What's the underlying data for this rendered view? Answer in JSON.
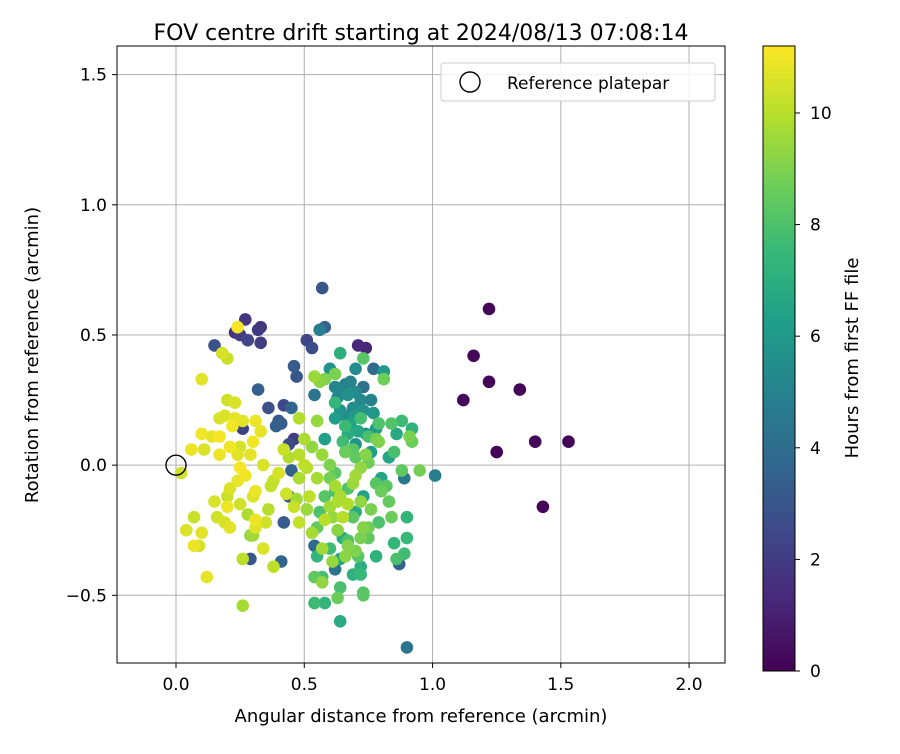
{
  "chart_data": {
    "type": "scatter",
    "title": "FOV centre drift starting at 2024/08/13 07:08:14",
    "xlabel": "Angular distance from reference (arcmin)",
    "ylabel": "Rotation from reference (arcmin)",
    "xlim": [
      -0.23,
      2.14
    ],
    "ylim": [
      -0.76,
      1.61
    ],
    "xticks": [
      0.0,
      0.5,
      1.0,
      1.5,
      2.0
    ],
    "xtick_labels": [
      "0.0",
      "0.5",
      "1.0",
      "1.5",
      "2.0"
    ],
    "yticks": [
      -0.5,
      0.0,
      0.5,
      1.0,
      1.5
    ],
    "ytick_labels": [
      "−0.5",
      "0.0",
      "0.5",
      "1.0",
      "1.5"
    ],
    "grid": true,
    "legend": {
      "placement": "top-right",
      "entries": [
        {
          "label": "Reference platepar",
          "marker": "open-circle",
          "color": "#000000"
        }
      ]
    },
    "reference_point": {
      "x": 0.0,
      "y": 0.0
    },
    "colorbar": {
      "label": "Hours from first FF file",
      "range": [
        0,
        11.2
      ],
      "ticks": [
        0,
        2,
        4,
        6,
        8,
        10
      ],
      "tick_labels": [
        "0",
        "2",
        "4",
        "6",
        "8",
        "10"
      ],
      "colormap": "viridis",
      "stops": [
        "#440154",
        "#482878",
        "#3e4989",
        "#31688e",
        "#26828e",
        "#1f9e89",
        "#35b779",
        "#6ece58",
        "#b5de2b",
        "#fde725"
      ]
    },
    "points": [
      {
        "x": 1.22,
        "y": 0.6,
        "t": 0.1
      },
      {
        "x": 1.16,
        "y": 0.42,
        "t": 0.2
      },
      {
        "x": 1.12,
        "y": 0.25,
        "t": 0.2
      },
      {
        "x": 1.22,
        "y": 0.32,
        "t": 0.1
      },
      {
        "x": 1.34,
        "y": 0.29,
        "t": 0.1
      },
      {
        "x": 1.25,
        "y": 0.05,
        "t": 0.1
      },
      {
        "x": 1.4,
        "y": 0.09,
        "t": 0.2
      },
      {
        "x": 1.53,
        "y": 0.09,
        "t": 0.1
      },
      {
        "x": 1.43,
        "y": -0.16,
        "t": 0.1
      },
      {
        "x": 0.74,
        "y": 0.45,
        "t": 1.2
      },
      {
        "x": 0.71,
        "y": 0.46,
        "t": 1.3
      },
      {
        "x": 0.27,
        "y": 0.56,
        "t": 1.8
      },
      {
        "x": 0.23,
        "y": 0.51,
        "t": 1.6
      },
      {
        "x": 0.25,
        "y": 0.5,
        "t": 2.0
      },
      {
        "x": 0.33,
        "y": 0.53,
        "t": 1.8
      },
      {
        "x": 0.32,
        "y": 0.52,
        "t": 1.9
      },
      {
        "x": 0.28,
        "y": 0.48,
        "t": 2.4
      },
      {
        "x": 0.33,
        "y": 0.47,
        "t": 2.0
      },
      {
        "x": 0.15,
        "y": 0.46,
        "t": 2.8
      },
      {
        "x": 0.51,
        "y": 0.48,
        "t": 2.3
      },
      {
        "x": 0.53,
        "y": 0.45,
        "t": 2.7
      },
      {
        "x": 0.57,
        "y": 0.68,
        "t": 3.0
      },
      {
        "x": 0.58,
        "y": 0.53,
        "t": 3.5
      },
      {
        "x": 0.46,
        "y": 0.38,
        "t": 3.2
      },
      {
        "x": 0.47,
        "y": 0.34,
        "t": 3.0
      },
      {
        "x": 0.32,
        "y": 0.29,
        "t": 3.4
      },
      {
        "x": 0.36,
        "y": 0.22,
        "t": 2.8
      },
      {
        "x": 0.42,
        "y": 0.23,
        "t": 2.5
      },
      {
        "x": 0.45,
        "y": 0.22,
        "t": 3.6
      },
      {
        "x": 0.4,
        "y": 0.17,
        "t": 3.0
      },
      {
        "x": 0.41,
        "y": 0.16,
        "t": 3.2
      },
      {
        "x": 0.39,
        "y": 0.15,
        "t": 3.4
      },
      {
        "x": 0.26,
        "y": 0.14,
        "t": 2.2
      },
      {
        "x": 0.46,
        "y": 0.1,
        "t": 2.0
      },
      {
        "x": 0.44,
        "y": 0.08,
        "t": 2.6
      },
      {
        "x": 0.45,
        "y": -0.02,
        "t": 3.5
      },
      {
        "x": 0.44,
        "y": -0.12,
        "t": 3.2
      },
      {
        "x": 0.42,
        "y": -0.22,
        "t": 3.3
      },
      {
        "x": 0.41,
        "y": -0.37,
        "t": 3.6
      },
      {
        "x": 0.29,
        "y": -0.36,
        "t": 3.1
      },
      {
        "x": 0.54,
        "y": -0.31,
        "t": 3.8
      },
      {
        "x": 0.77,
        "y": 0.37,
        "t": 3.9
      },
      {
        "x": 0.73,
        "y": 0.3,
        "t": 4.2
      },
      {
        "x": 0.87,
        "y": -0.38,
        "t": 3.5
      },
      {
        "x": 0.9,
        "y": -0.7,
        "t": 4.3
      },
      {
        "x": 1.01,
        "y": -0.04,
        "t": 4.8
      },
      {
        "x": 0.89,
        "y": -0.05,
        "t": 4.5
      },
      {
        "x": 0.62,
        "y": -0.4,
        "t": 4.3
      },
      {
        "x": 0.54,
        "y": 0.27,
        "t": 4.3
      },
      {
        "x": 0.56,
        "y": 0.52,
        "t": 4.7
      },
      {
        "x": 0.66,
        "y": 0.31,
        "t": 4.9
      },
      {
        "x": 0.68,
        "y": 0.32,
        "t": 5.0
      },
      {
        "x": 0.65,
        "y": 0.29,
        "t": 5.1
      },
      {
        "x": 0.63,
        "y": 0.26,
        "t": 5.2
      },
      {
        "x": 0.7,
        "y": 0.37,
        "t": 5.4
      },
      {
        "x": 0.69,
        "y": 0.22,
        "t": 5.4
      },
      {
        "x": 0.66,
        "y": 0.19,
        "t": 5.5
      },
      {
        "x": 0.72,
        "y": 0.25,
        "t": 5.3
      },
      {
        "x": 0.74,
        "y": 0.12,
        "t": 5.6
      },
      {
        "x": 0.7,
        "y": 0.08,
        "t": 5.8
      },
      {
        "x": 0.77,
        "y": 0.2,
        "t": 5.9
      },
      {
        "x": 0.81,
        "y": 0.36,
        "t": 6.0
      },
      {
        "x": 0.78,
        "y": 0.14,
        "t": 6.1
      },
      {
        "x": 0.6,
        "y": 0.37,
        "t": 5.7
      },
      {
        "x": 0.62,
        "y": 0.18,
        "t": 6.2
      },
      {
        "x": 0.58,
        "y": 0.1,
        "t": 6.3
      },
      {
        "x": 0.76,
        "y": 0.05,
        "t": 6.2
      },
      {
        "x": 0.8,
        "y": -0.05,
        "t": 6.4
      },
      {
        "x": 0.83,
        "y": 0.03,
        "t": 6.5
      },
      {
        "x": 0.86,
        "y": 0.12,
        "t": 6.7
      },
      {
        "x": 0.92,
        "y": 0.14,
        "t": 7.2
      },
      {
        "x": 0.73,
        "y": -0.12,
        "t": 6.4
      },
      {
        "x": 0.7,
        "y": -0.18,
        "t": 6.7
      },
      {
        "x": 0.65,
        "y": -0.28,
        "t": 6.9
      },
      {
        "x": 0.64,
        "y": -0.36,
        "t": 6.6
      },
      {
        "x": 0.72,
        "y": -0.39,
        "t": 7.0
      },
      {
        "x": 0.78,
        "y": -0.35,
        "t": 7.2
      },
      {
        "x": 0.69,
        "y": -0.42,
        "t": 7.1
      },
      {
        "x": 0.72,
        "y": -0.42,
        "t": 7.5
      },
      {
        "x": 0.6,
        "y": -0.32,
        "t": 7.7
      },
      {
        "x": 0.55,
        "y": -0.35,
        "t": 7.4
      },
      {
        "x": 0.57,
        "y": -0.43,
        "t": 7.8
      },
      {
        "x": 0.64,
        "y": -0.6,
        "t": 6.8
      },
      {
        "x": 0.58,
        "y": -0.53,
        "t": 7.3
      },
      {
        "x": 0.54,
        "y": -0.53,
        "t": 7.6
      },
      {
        "x": 0.64,
        "y": -0.47,
        "t": 7.9
      },
      {
        "x": 0.73,
        "y": -0.49,
        "t": 8.1
      },
      {
        "x": 0.73,
        "y": -0.5,
        "t": 8.3
      },
      {
        "x": 0.64,
        "y": 0.43,
        "t": 7.0
      },
      {
        "x": 0.62,
        "y": 0.24,
        "t": 7.4
      },
      {
        "x": 0.66,
        "y": 0.15,
        "t": 7.6
      },
      {
        "x": 0.72,
        "y": 0.18,
        "t": 7.8
      },
      {
        "x": 0.75,
        "y": 0.11,
        "t": 7.9
      },
      {
        "x": 0.79,
        "y": 0.16,
        "t": 8.0
      },
      {
        "x": 0.84,
        "y": 0.16,
        "t": 8.1
      },
      {
        "x": 0.88,
        "y": 0.17,
        "t": 7.6
      },
      {
        "x": 0.85,
        "y": 0.05,
        "t": 7.9
      },
      {
        "x": 0.88,
        "y": -0.02,
        "t": 8.4
      },
      {
        "x": 0.9,
        "y": -0.2,
        "t": 7.3
      },
      {
        "x": 0.9,
        "y": -0.28,
        "t": 7.5
      },
      {
        "x": 0.89,
        "y": -0.34,
        "t": 7.7
      },
      {
        "x": 0.86,
        "y": -0.36,
        "t": 7.9
      },
      {
        "x": 0.79,
        "y": -0.22,
        "t": 8.0
      },
      {
        "x": 0.78,
        "y": -0.07,
        "t": 8.2
      },
      {
        "x": 0.83,
        "y": -0.14,
        "t": 8.5
      },
      {
        "x": 0.92,
        "y": 0.09,
        "t": 8.6
      },
      {
        "x": 0.95,
        "y": -0.02,
        "t": 8.8
      },
      {
        "x": 0.91,
        "y": 0.11,
        "t": 8.9
      },
      {
        "x": 0.79,
        "y": 0.09,
        "t": 9.0
      },
      {
        "x": 0.75,
        "y": 0.01,
        "t": 8.7
      },
      {
        "x": 0.7,
        "y": 0.03,
        "t": 8.4
      },
      {
        "x": 0.66,
        "y": 0.05,
        "t": 8.6
      },
      {
        "x": 0.62,
        "y": -0.03,
        "t": 8.3
      },
      {
        "x": 0.6,
        "y": -0.05,
        "t": 8.8
      },
      {
        "x": 0.58,
        "y": -0.12,
        "t": 8.2
      },
      {
        "x": 0.56,
        "y": -0.18,
        "t": 8.0
      },
      {
        "x": 0.55,
        "y": -0.24,
        "t": 8.5
      },
      {
        "x": 0.62,
        "y": -0.1,
        "t": 7.9
      },
      {
        "x": 0.67,
        "y": -0.09,
        "t": 8.1
      },
      {
        "x": 0.69,
        "y": -0.2,
        "t": 8.3
      },
      {
        "x": 0.75,
        "y": -0.24,
        "t": 8.7
      },
      {
        "x": 0.72,
        "y": -0.28,
        "t": 8.9
      },
      {
        "x": 0.67,
        "y": -0.31,
        "t": 9.1
      },
      {
        "x": 0.63,
        "y": -0.25,
        "t": 9.2
      },
      {
        "x": 0.61,
        "y": -0.2,
        "t": 9.4
      },
      {
        "x": 0.6,
        "y": -0.16,
        "t": 9.6
      },
      {
        "x": 0.63,
        "y": -0.14,
        "t": 9.8
      },
      {
        "x": 0.58,
        "y": -0.21,
        "t": 10.0
      },
      {
        "x": 0.54,
        "y": -0.43,
        "t": 8.4
      },
      {
        "x": 0.63,
        "y": -0.51,
        "t": 8.6
      },
      {
        "x": 0.57,
        "y": -0.45,
        "t": 9.3
      },
      {
        "x": 0.73,
        "y": 0.41,
        "t": 8.2
      },
      {
        "x": 0.81,
        "y": 0.33,
        "t": 8.7
      },
      {
        "x": 0.62,
        "y": 0.35,
        "t": 8.9
      },
      {
        "x": 0.58,
        "y": 0.33,
        "t": 9.0
      },
      {
        "x": 0.56,
        "y": 0.32,
        "t": 9.2
      },
      {
        "x": 0.54,
        "y": 0.34,
        "t": 9.5
      },
      {
        "x": 0.55,
        "y": 0.17,
        "t": 9.4
      },
      {
        "x": 0.53,
        "y": 0.07,
        "t": 9.3
      },
      {
        "x": 0.57,
        "y": 0.04,
        "t": 9.5
      },
      {
        "x": 0.55,
        "y": -0.05,
        "t": 9.7
      },
      {
        "x": 0.51,
        "y": -0.01,
        "t": 9.9
      },
      {
        "x": 0.48,
        "y": 0.04,
        "t": 10.0
      },
      {
        "x": 0.48,
        "y": 0.18,
        "t": 9.9
      },
      {
        "x": 0.52,
        "y": -0.12,
        "t": 10.1
      },
      {
        "x": 0.48,
        "y": -0.22,
        "t": 10.2
      },
      {
        "x": 0.46,
        "y": -0.16,
        "t": 10.3
      },
      {
        "x": 0.43,
        "y": -0.11,
        "t": 10.4
      },
      {
        "x": 0.4,
        "y": -0.03,
        "t": 10.5
      },
      {
        "x": 0.38,
        "y": -0.06,
        "t": 10.2
      },
      {
        "x": 0.36,
        "y": -0.17,
        "t": 10.0
      },
      {
        "x": 0.38,
        "y": -0.39,
        "t": 10.1
      },
      {
        "x": 0.35,
        "y": -0.22,
        "t": 10.4
      },
      {
        "x": 0.34,
        "y": -0.32,
        "t": 10.6
      },
      {
        "x": 0.31,
        "y": -0.24,
        "t": 10.7
      },
      {
        "x": 0.3,
        "y": -0.27,
        "t": 9.6
      },
      {
        "x": 0.28,
        "y": -0.19,
        "t": 9.8
      },
      {
        "x": 0.31,
        "y": -0.1,
        "t": 10.9
      },
      {
        "x": 0.34,
        "y": 0.0,
        "t": 10.6
      },
      {
        "x": 0.29,
        "y": 0.04,
        "t": 10.8
      },
      {
        "x": 0.25,
        "y": 0.07,
        "t": 10.5
      },
      {
        "x": 0.26,
        "y": 0.17,
        "t": 10.7
      },
      {
        "x": 0.31,
        "y": 0.17,
        "t": 10.9
      },
      {
        "x": 0.33,
        "y": 0.13,
        "t": 10.8
      },
      {
        "x": 0.3,
        "y": 0.09,
        "t": 11.0
      },
      {
        "x": 0.22,
        "y": 0.15,
        "t": 11.0
      },
      {
        "x": 0.19,
        "y": 0.19,
        "t": 10.6
      },
      {
        "x": 0.17,
        "y": 0.11,
        "t": 11.1
      },
      {
        "x": 0.14,
        "y": 0.11,
        "t": 10.8
      },
      {
        "x": 0.1,
        "y": 0.12,
        "t": 11.0
      },
      {
        "x": 0.06,
        "y": 0.06,
        "t": 10.9
      },
      {
        "x": 0.11,
        "y": 0.06,
        "t": 10.6
      },
      {
        "x": 0.17,
        "y": 0.04,
        "t": 10.9
      },
      {
        "x": 0.21,
        "y": 0.07,
        "t": 11.0
      },
      {
        "x": 0.24,
        "y": 0.04,
        "t": 10.7
      },
      {
        "x": 0.2,
        "y": 0.25,
        "t": 10.4
      },
      {
        "x": 0.23,
        "y": 0.24,
        "t": 10.6
      },
      {
        "x": 0.23,
        "y": 0.18,
        "t": 10.8
      },
      {
        "x": 0.17,
        "y": 0.18,
        "t": 10.5
      },
      {
        "x": 0.24,
        "y": 0.53,
        "t": 11.1
      },
      {
        "x": 0.2,
        "y": 0.41,
        "t": 10.3
      },
      {
        "x": 0.18,
        "y": 0.43,
        "t": 10.5
      },
      {
        "x": 0.1,
        "y": 0.33,
        "t": 10.7
      },
      {
        "x": 0.02,
        "y": -0.03,
        "t": 10.4
      },
      {
        "x": 0.04,
        "y": -0.25,
        "t": 10.6
      },
      {
        "x": 0.07,
        "y": -0.2,
        "t": 10.3
      },
      {
        "x": 0.09,
        "y": -0.31,
        "t": 10.5
      },
      {
        "x": 0.1,
        "y": -0.26,
        "t": 10.7
      },
      {
        "x": 0.07,
        "y": -0.31,
        "t": 10.9
      },
      {
        "x": 0.12,
        "y": -0.43,
        "t": 10.8
      },
      {
        "x": 0.16,
        "y": -0.2,
        "t": 10.4
      },
      {
        "x": 0.15,
        "y": -0.14,
        "t": 10.6
      },
      {
        "x": 0.2,
        "y": -0.16,
        "t": 10.9
      },
      {
        "x": 0.21,
        "y": -0.24,
        "t": 10.7
      },
      {
        "x": 0.19,
        "y": -0.22,
        "t": 10.5
      },
      {
        "x": 0.21,
        "y": -0.09,
        "t": 10.6
      },
      {
        "x": 0.2,
        "y": -0.12,
        "t": 10.3
      },
      {
        "x": 0.24,
        "y": -0.06,
        "t": 10.8
      },
      {
        "x": 0.27,
        "y": -0.04,
        "t": 11.0
      },
      {
        "x": 0.25,
        "y": -0.01,
        "t": 11.1
      },
      {
        "x": 0.25,
        "y": -0.15,
        "t": 10.4
      },
      {
        "x": 0.3,
        "y": -0.12,
        "t": 10.6
      },
      {
        "x": 0.31,
        "y": -0.21,
        "t": 10.9
      },
      {
        "x": 0.26,
        "y": -0.36,
        "t": 10.1
      },
      {
        "x": 0.26,
        "y": -0.54,
        "t": 9.7
      },
      {
        "x": 0.29,
        "y": -0.27,
        "t": 9.4
      },
      {
        "x": 0.37,
        "y": -0.08,
        "t": 10.2
      },
      {
        "x": 0.42,
        "y": 0.06,
        "t": 10.3
      },
      {
        "x": 0.44,
        "y": 0.03,
        "t": 9.9
      },
      {
        "x": 0.48,
        "y": -0.05,
        "t": 9.8
      },
      {
        "x": 0.47,
        "y": -0.13,
        "t": 9.6
      },
      {
        "x": 0.51,
        "y": -0.17,
        "t": 9.5
      },
      {
        "x": 0.53,
        "y": -0.26,
        "t": 9.7
      },
      {
        "x": 0.57,
        "y": -0.32,
        "t": 9.6
      },
      {
        "x": 0.61,
        "y": -0.37,
        "t": 9.4
      },
      {
        "x": 0.66,
        "y": -0.35,
        "t": 9.2
      },
      {
        "x": 0.7,
        "y": -0.33,
        "t": 9.0
      },
      {
        "x": 0.73,
        "y": -0.24,
        "t": 9.1
      },
      {
        "x": 0.76,
        "y": -0.17,
        "t": 8.9
      },
      {
        "x": 0.72,
        "y": -0.14,
        "t": 9.3
      },
      {
        "x": 0.69,
        "y": -0.07,
        "t": 9.5
      },
      {
        "x": 0.72,
        "y": -0.01,
        "t": 9.3
      },
      {
        "x": 0.74,
        "y": 0.04,
        "t": 9.1
      },
      {
        "x": 0.78,
        "y": 0.1,
        "t": 8.8
      },
      {
        "x": 0.8,
        "y": -0.1,
        "t": 8.6
      },
      {
        "x": 0.75,
        "y": -0.28,
        "t": 8.4
      },
      {
        "x": 0.71,
        "y": -0.35,
        "t": 8.2
      },
      {
        "x": 0.67,
        "y": -0.29,
        "t": 8.0
      },
      {
        "x": 0.69,
        "y": 0.06,
        "t": 8.3
      },
      {
        "x": 0.65,
        "y": 0.09,
        "t": 7.7
      },
      {
        "x": 0.6,
        "y": 0.0,
        "t": 9.0
      },
      {
        "x": 0.67,
        "y": -0.15,
        "t": 9.9
      },
      {
        "x": 0.65,
        "y": -0.2,
        "t": 10.0
      },
      {
        "x": 0.5,
        "y": 0.0,
        "t": 10.1
      },
      {
        "x": 0.5,
        "y": 0.1,
        "t": 9.8
      },
      {
        "x": 0.62,
        "y": -0.08,
        "t": 9.7
      },
      {
        "x": 0.64,
        "y": -0.12,
        "t": 9.8
      },
      {
        "x": 0.7,
        "y": -0.04,
        "t": 9.6
      },
      {
        "x": 0.82,
        "y": -0.08,
        "t": 8.3
      },
      {
        "x": 0.84,
        "y": -0.2,
        "t": 8.6
      },
      {
        "x": 0.85,
        "y": -0.3,
        "t": 7.4
      },
      {
        "x": 0.68,
        "y": 0.16,
        "t": 6.4
      },
      {
        "x": 0.71,
        "y": 0.13,
        "t": 6.6
      },
      {
        "x": 0.67,
        "y": 0.12,
        "t": 6.9
      },
      {
        "x": 0.64,
        "y": 0.21,
        "t": 5.8
      },
      {
        "x": 0.67,
        "y": 0.27,
        "t": 5.6
      },
      {
        "x": 0.7,
        "y": 0.28,
        "t": 5.3
      },
      {
        "x": 0.76,
        "y": 0.25,
        "t": 5.0
      },
      {
        "x": 0.73,
        "y": 0.21,
        "t": 5.7
      },
      {
        "x": 0.7,
        "y": 0.19,
        "t": 6.0
      },
      {
        "x": 0.62,
        "y": 0.3,
        "t": 5.2
      }
    ]
  }
}
